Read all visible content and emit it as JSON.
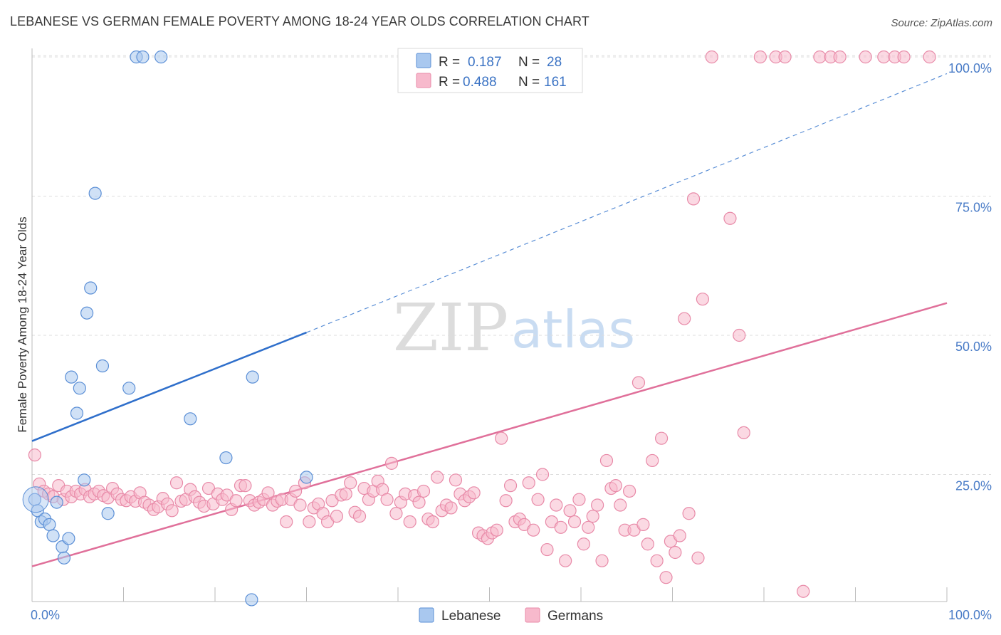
{
  "title": "LEBANESE VS GERMAN FEMALE POVERTY AMONG 18-24 YEAR OLDS CORRELATION CHART",
  "source": "Source: ZipAtlas.com",
  "watermark": {
    "zip": "ZIP",
    "atlas": "atlas"
  },
  "colors": {
    "lebanese_fill": "#a9c8ef",
    "lebanese_stroke": "#5b8fd6",
    "lebanese_line": "#2f6fcb",
    "germans_fill": "#f7b9cc",
    "germans_stroke": "#e88aa8",
    "germans_line": "#e0709a",
    "tick_label": "#4a7cc7",
    "grid": "#dddddd"
  },
  "legend": {
    "rows": [
      {
        "r_label": "R =",
        "r_value": "0.187",
        "n_label": "N =",
        "n_value": "28"
      },
      {
        "r_label": "R =",
        "r_value": "0.488",
        "n_label": "N =",
        "n_value": "161"
      }
    ]
  },
  "chart_data": {
    "type": "scatter",
    "title": "LEBANESE VS GERMAN FEMALE POVERTY AMONG 18-24 YEAR OLDS CORRELATION CHART",
    "xlabel": "",
    "ylabel": "Female Poverty Among 18-24 Year Olds",
    "xlim": [
      0,
      100
    ],
    "ylim": [
      0,
      100
    ],
    "x_tick_labels": [
      "0.0%",
      "100.0%"
    ],
    "y_ticks": [
      25,
      50,
      75,
      100
    ],
    "y_tick_labels": [
      "25.0%",
      "50.0%",
      "75.0%",
      "100.0%"
    ],
    "series": [
      {
        "name": "Lebanese",
        "R": 0.187,
        "N": 28,
        "trend": {
          "x": [
            0,
            30
          ],
          "y": [
            31,
            50.5
          ],
          "extended_to": [
            100,
            97
          ]
        },
        "points": [
          [
            0.3,
            20.5
          ],
          [
            0.6,
            18.5
          ],
          [
            1.0,
            16.5
          ],
          [
            1.4,
            17
          ],
          [
            1.9,
            16
          ],
          [
            2.3,
            14
          ],
          [
            2.7,
            20
          ],
          [
            3.3,
            12
          ],
          [
            3.5,
            10
          ],
          [
            4.0,
            13.5
          ],
          [
            4.3,
            42.5
          ],
          [
            5.2,
            40.5
          ],
          [
            4.9,
            36
          ],
          [
            5.7,
            24
          ],
          [
            6.0,
            54
          ],
          [
            6.4,
            58.5
          ],
          [
            6.9,
            75.5
          ],
          [
            7.7,
            44.5
          ],
          [
            8.3,
            18
          ],
          [
            10.6,
            40.5
          ],
          [
            11.4,
            100
          ],
          [
            12.1,
            100
          ],
          [
            14.1,
            100
          ],
          [
            17.3,
            35
          ],
          [
            21.2,
            28
          ],
          [
            24.1,
            42.5
          ],
          [
            24.0,
            2.5
          ],
          [
            30.0,
            24.5
          ]
        ]
      },
      {
        "name": "Germans",
        "R": 0.488,
        "N": 161,
        "trend": {
          "x": [
            0,
            100
          ],
          "y": [
            8.5,
            55.8
          ]
        },
        "points": [
          [
            0.3,
            28.5
          ],
          [
            0.8,
            23.3
          ],
          [
            1.3,
            22
          ],
          [
            1.8,
            21.5
          ],
          [
            2.3,
            21
          ],
          [
            2.9,
            23
          ],
          [
            3.4,
            20.5
          ],
          [
            3.8,
            22
          ],
          [
            4.3,
            21
          ],
          [
            4.8,
            22
          ],
          [
            5.3,
            21.5
          ],
          [
            5.8,
            22.3
          ],
          [
            6.3,
            21
          ],
          [
            6.8,
            21.5
          ],
          [
            7.3,
            22
          ],
          [
            7.8,
            21.2
          ],
          [
            8.3,
            20.8
          ],
          [
            8.8,
            22.5
          ],
          [
            9.3,
            21.5
          ],
          [
            9.8,
            20.5
          ],
          [
            10.3,
            20.3
          ],
          [
            10.8,
            21
          ],
          [
            11.3,
            20.2
          ],
          [
            11.8,
            21.7
          ],
          [
            12.3,
            20
          ],
          [
            12.8,
            19.5
          ],
          [
            13.3,
            18.7
          ],
          [
            13.8,
            19.2
          ],
          [
            14.3,
            20.7
          ],
          [
            14.8,
            19.7
          ],
          [
            15.3,
            18.5
          ],
          [
            15.8,
            23.5
          ],
          [
            16.3,
            20.2
          ],
          [
            16.8,
            20.5
          ],
          [
            17.3,
            22.3
          ],
          [
            17.8,
            21
          ],
          [
            18.3,
            20
          ],
          [
            18.8,
            19.3
          ],
          [
            19.3,
            22.5
          ],
          [
            19.8,
            19.7
          ],
          [
            20.3,
            21.5
          ],
          [
            20.8,
            20.5
          ],
          [
            21.3,
            21.3
          ],
          [
            21.8,
            18.7
          ],
          [
            22.3,
            20.3
          ],
          [
            22.8,
            23
          ],
          [
            23.3,
            23
          ],
          [
            23.8,
            20.3
          ],
          [
            24.3,
            19.5
          ],
          [
            24.8,
            20
          ],
          [
            25.3,
            20.5
          ],
          [
            25.8,
            21.7
          ],
          [
            26.3,
            19.5
          ],
          [
            26.8,
            20.2
          ],
          [
            27.3,
            20.5
          ],
          [
            27.8,
            16.5
          ],
          [
            28.3,
            20.5
          ],
          [
            28.8,
            22
          ],
          [
            29.3,
            19.5
          ],
          [
            29.8,
            23.5
          ],
          [
            30.3,
            16.5
          ],
          [
            30.8,
            19
          ],
          [
            31.3,
            19.7
          ],
          [
            31.8,
            18
          ],
          [
            32.3,
            16.5
          ],
          [
            32.8,
            20.3
          ],
          [
            33.3,
            17.5
          ],
          [
            33.8,
            21.3
          ],
          [
            34.3,
            21.5
          ],
          [
            34.8,
            23.5
          ],
          [
            35.3,
            18.2
          ],
          [
            35.8,
            17.5
          ],
          [
            36.3,
            22.5
          ],
          [
            36.8,
            20.5
          ],
          [
            37.3,
            22
          ],
          [
            37.8,
            23.8
          ],
          [
            38.3,
            22.3
          ],
          [
            38.8,
            20.5
          ],
          [
            39.3,
            27
          ],
          [
            39.8,
            18
          ],
          [
            40.3,
            20
          ],
          [
            40.8,
            21.5
          ],
          [
            41.3,
            16.5
          ],
          [
            41.8,
            21.2
          ],
          [
            42.3,
            20
          ],
          [
            42.8,
            22
          ],
          [
            43.3,
            17
          ],
          [
            43.8,
            16.5
          ],
          [
            44.3,
            24.5
          ],
          [
            44.8,
            18.5
          ],
          [
            45.3,
            19.5
          ],
          [
            45.8,
            19
          ],
          [
            46.3,
            24
          ],
          [
            46.8,
            21.5
          ],
          [
            47.3,
            20.3
          ],
          [
            47.8,
            21
          ],
          [
            48.3,
            21.7
          ],
          [
            48.8,
            14.5
          ],
          [
            49.3,
            14
          ],
          [
            49.8,
            13.5
          ],
          [
            50.3,
            14.5
          ],
          [
            50.8,
            15
          ],
          [
            51.3,
            31.5
          ],
          [
            51.8,
            20.3
          ],
          [
            52.3,
            23
          ],
          [
            52.8,
            16.5
          ],
          [
            53.3,
            17
          ],
          [
            53.8,
            16
          ],
          [
            54.3,
            23.5
          ],
          [
            54.8,
            15
          ],
          [
            55.3,
            20.5
          ],
          [
            55.8,
            25
          ],
          [
            56.3,
            11.5
          ],
          [
            56.8,
            16.5
          ],
          [
            57.3,
            19.5
          ],
          [
            57.8,
            15.5
          ],
          [
            58.3,
            9.5
          ],
          [
            58.8,
            18.5
          ],
          [
            59.3,
            16.5
          ],
          [
            59.8,
            20.5
          ],
          [
            60.3,
            12.5
          ],
          [
            60.8,
            15.5
          ],
          [
            61.3,
            17.5
          ],
          [
            61.8,
            19.5
          ],
          [
            62.3,
            9.5
          ],
          [
            62.8,
            27.5
          ],
          [
            63.3,
            22.5
          ],
          [
            63.8,
            23
          ],
          [
            64.3,
            19.5
          ],
          [
            64.8,
            15
          ],
          [
            65.3,
            22
          ],
          [
            65.8,
            15
          ],
          [
            66.3,
            41.5
          ],
          [
            66.8,
            16
          ],
          [
            67.3,
            12.5
          ],
          [
            67.8,
            27.5
          ],
          [
            68.3,
            9.5
          ],
          [
            68.8,
            31.5
          ],
          [
            69.3,
            6.5
          ],
          [
            69.8,
            13
          ],
          [
            70.3,
            11
          ],
          [
            70.8,
            14
          ],
          [
            71.3,
            53
          ],
          [
            71.8,
            18
          ],
          [
            72.3,
            74.5
          ],
          [
            72.8,
            10
          ],
          [
            73.3,
            56.5
          ],
          [
            74.3,
            100
          ],
          [
            76.3,
            71
          ],
          [
            77.3,
            50
          ],
          [
            77.8,
            32.5
          ],
          [
            79.6,
            100
          ],
          [
            81.3,
            100
          ],
          [
            82.3,
            100
          ],
          [
            84.3,
            4
          ],
          [
            86.1,
            100
          ],
          [
            87.3,
            100
          ],
          [
            88.3,
            100
          ],
          [
            91.1,
            100
          ],
          [
            93.1,
            100
          ],
          [
            94.3,
            100
          ],
          [
            95.3,
            100
          ],
          [
            98.1,
            100
          ]
        ]
      }
    ]
  },
  "bottom_legend": {
    "items": [
      "Lebanese",
      "Germans"
    ]
  }
}
